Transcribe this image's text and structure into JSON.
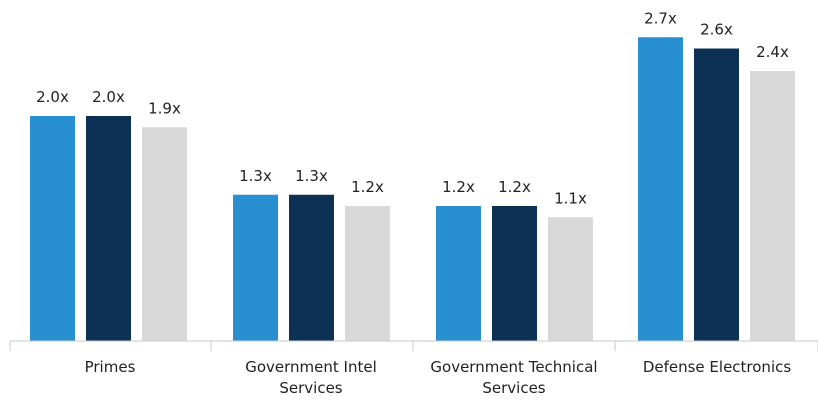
{
  "chart_data": {
    "type": "bar",
    "categories": [
      [
        "Primes"
      ],
      [
        "Government Intel",
        "Services"
      ],
      [
        "Government Technical",
        "Services"
      ],
      [
        "Defense Electronics"
      ]
    ],
    "series": [
      {
        "values": [
          2.0,
          1.3,
          1.2,
          2.7
        ],
        "labels": [
          "2.0x",
          "1.3x",
          "1.2x",
          "2.7x"
        ],
        "color": "#2890D0"
      },
      {
        "values": [
          2.0,
          1.3,
          1.2,
          2.6
        ],
        "labels": [
          "2.0x",
          "1.3x",
          "1.2x",
          "2.6x"
        ],
        "color": "#0C3154"
      },
      {
        "values": [
          1.9,
          1.2,
          1.1,
          2.4
        ],
        "labels": [
          "1.9x",
          "1.2x",
          "1.1x",
          "2.4x"
        ],
        "color": "#D9D9D9"
      }
    ],
    "ylim": [
      0,
      3.0
    ],
    "grid": false,
    "axis_color": "#C8C8C8"
  }
}
